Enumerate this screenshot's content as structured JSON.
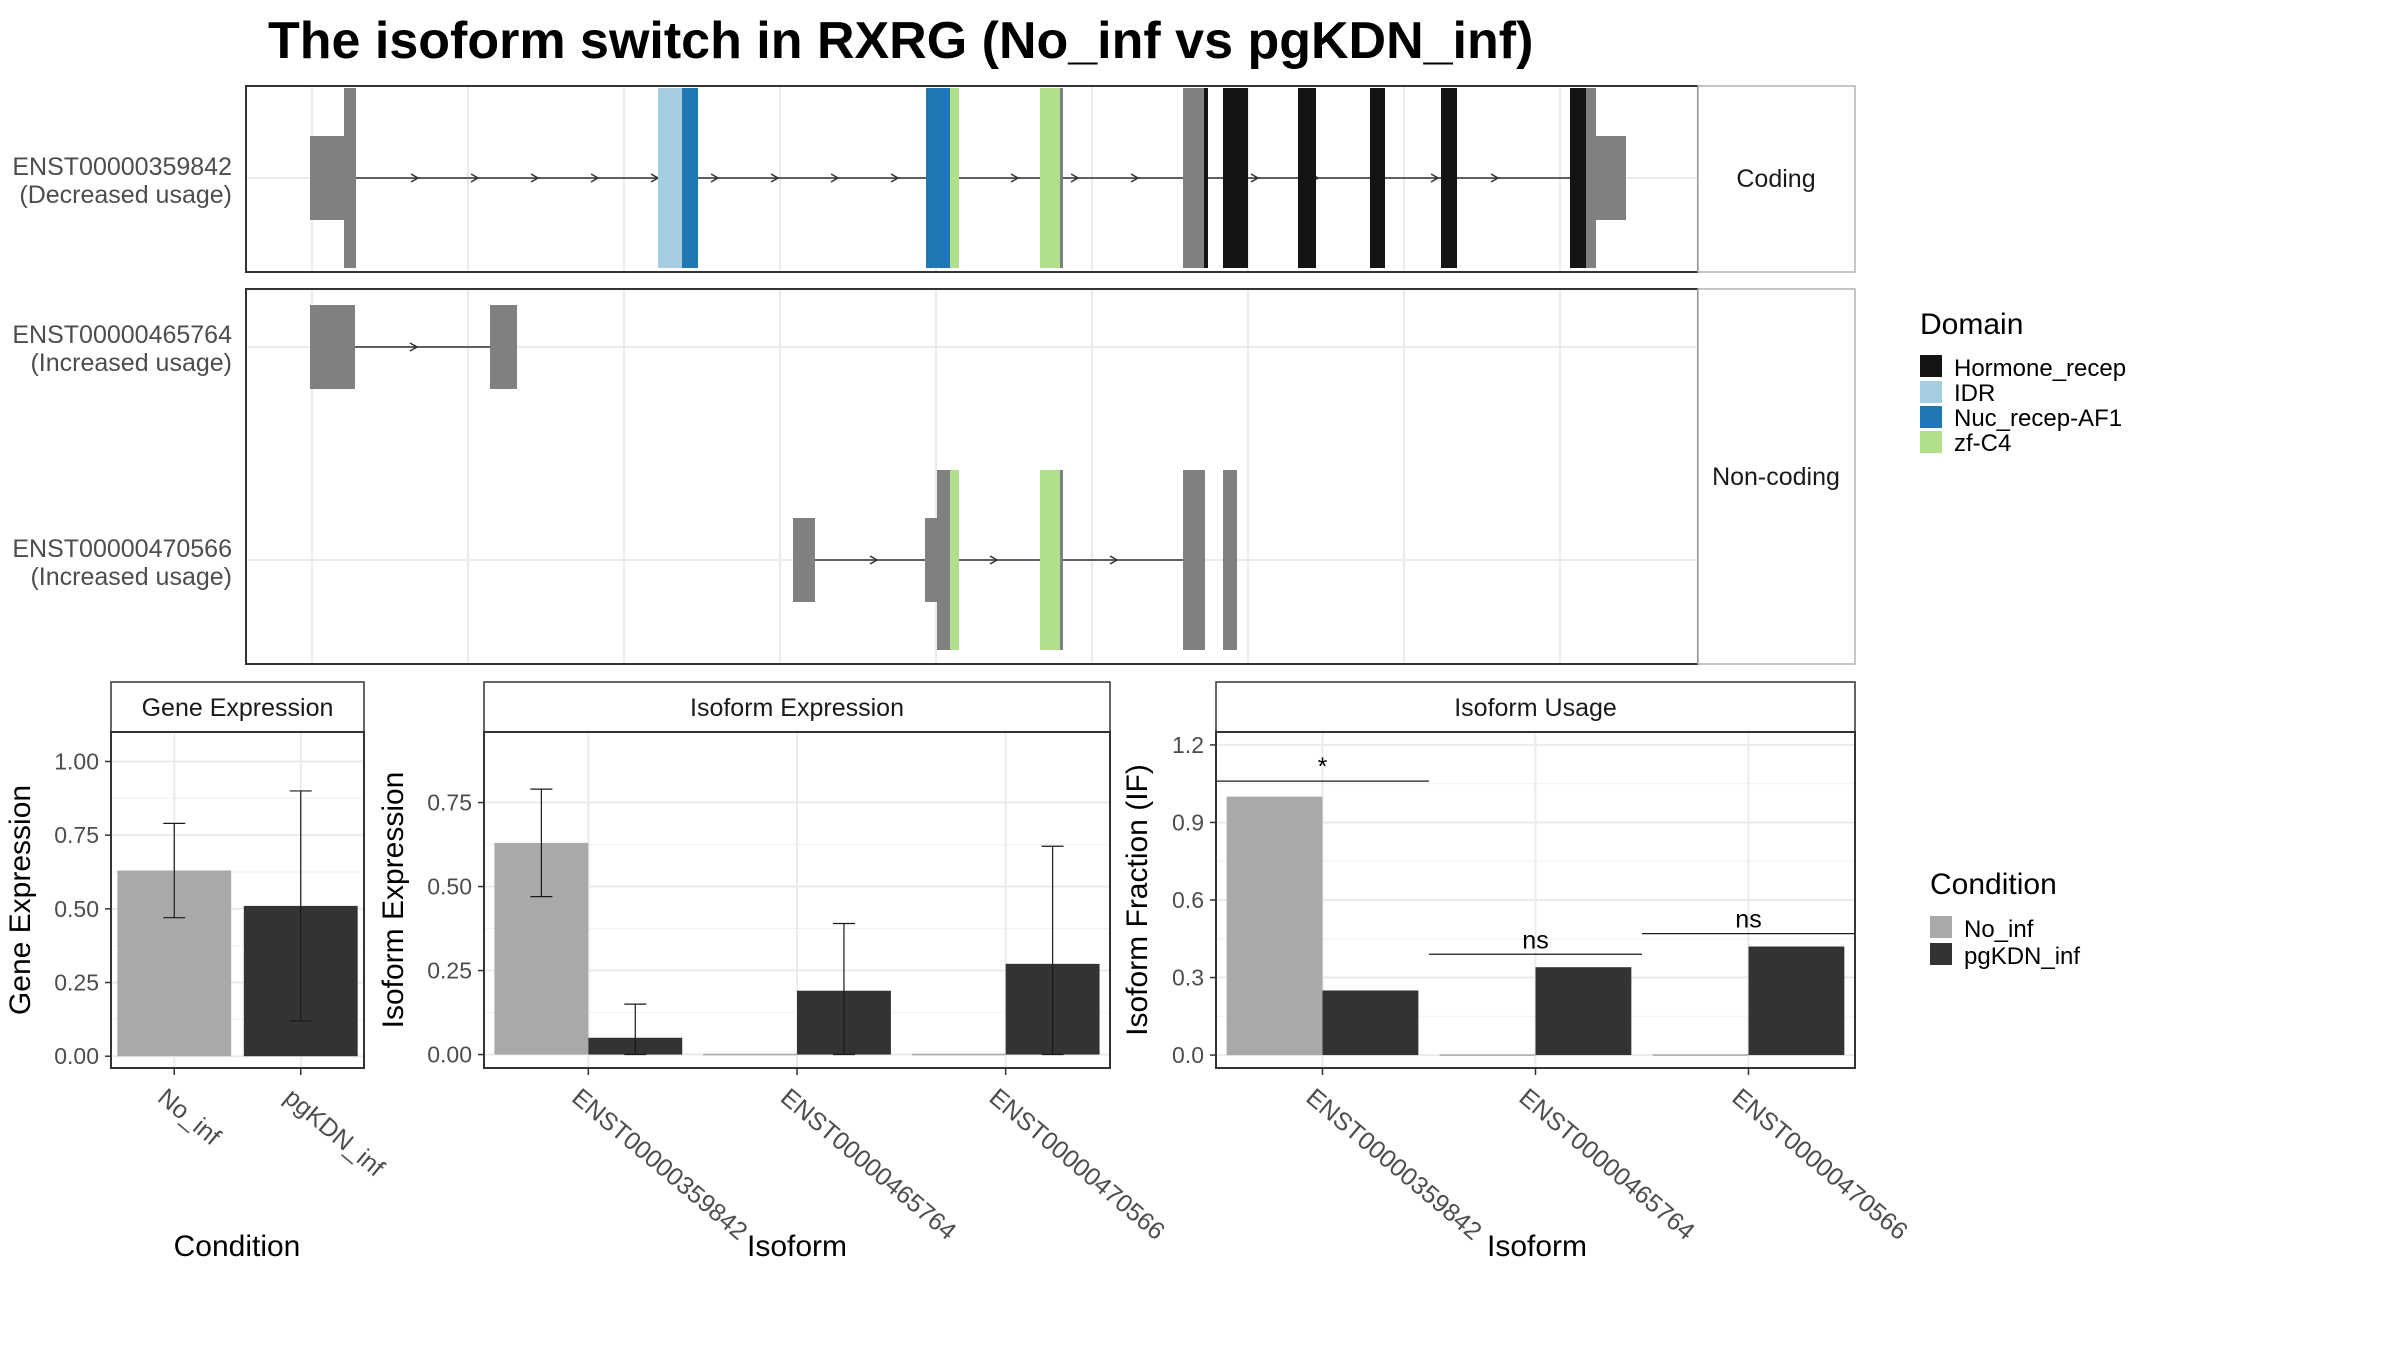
{
  "title": "The isoform switch in RXRG (No_inf vs pgKDN_inf)",
  "colors": {
    "hormone_recep": "#141414",
    "idr": "#a6cee3",
    "nuc_recep_af1": "#1f78b4",
    "zf_c4": "#b2df8a",
    "exon": "#808080",
    "no_inf": "#a9a9a9",
    "pgkdn_inf": "#333333",
    "grid": "#ebebeb",
    "panel_border": "#333333",
    "strip_border": "#b3b3b3"
  },
  "structure": {
    "facet_coding": "Coding",
    "facet_noncoding": "Non-coding",
    "transcripts": [
      {
        "id": "ENST00000359842",
        "usage": "(Decreased usage)",
        "type": "coding"
      },
      {
        "id": "ENST00000465764",
        "usage": "(Increased usage)",
        "type": "noncoding"
      },
      {
        "id": "ENST00000470566",
        "usage": "(Increased usage)",
        "type": "noncoding"
      }
    ],
    "domain_legend": {
      "title": "Domain",
      "items": [
        "Hormone_recep",
        "IDR",
        "Nuc_recep-AF1",
        "zf-C4"
      ]
    }
  },
  "chart_data": [
    {
      "type": "bar",
      "title": "Gene Expression",
      "xlabel": "Condition",
      "ylabel": "Gene Expression",
      "categories": [
        "No_inf",
        "pgKDN_inf"
      ],
      "values": [
        0.63,
        0.51
      ],
      "errors": [
        [
          0.47,
          0.79
        ],
        [
          0.12,
          0.9
        ]
      ],
      "ylim": [
        -0.04,
        1.1
      ],
      "yticks": [
        0.0,
        0.25,
        0.5,
        0.75,
        1.0
      ],
      "ytick_labels": [
        "0.00",
        "0.25",
        "0.50",
        "0.75",
        "1.00"
      ]
    },
    {
      "type": "bar",
      "title": "Isoform Expression",
      "xlabel": "Isoform",
      "ylabel": "Isoform Expression",
      "categories": [
        "ENST00000359842",
        "ENST00000465764",
        "ENST00000470566"
      ],
      "series": [
        {
          "name": "No_inf",
          "values": [
            0.63,
            0.0,
            0.0
          ],
          "errors": [
            [
              0.47,
              0.79
            ],
            null,
            null
          ]
        },
        {
          "name": "pgKDN_inf",
          "values": [
            0.05,
            0.19,
            0.27
          ],
          "errors": [
            [
              0.0,
              0.15
            ],
            [
              0.0,
              0.39
            ],
            [
              0.0,
              0.62
            ]
          ]
        }
      ],
      "ylim": [
        -0.04,
        0.96
      ],
      "yticks": [
        0.0,
        0.25,
        0.5,
        0.75
      ],
      "ytick_labels": [
        "0.00",
        "0.25",
        "0.50",
        "0.75"
      ]
    },
    {
      "type": "bar",
      "title": "Isoform Usage",
      "xlabel": "Isoform",
      "ylabel": "Isoform Fraction (IF)",
      "categories": [
        "ENST00000359842",
        "ENST00000465764",
        "ENST00000470566"
      ],
      "series": [
        {
          "name": "No_inf",
          "values": [
            1.0,
            0.0,
            0.0
          ]
        },
        {
          "name": "pgKDN_inf",
          "values": [
            0.25,
            0.34,
            0.42
          ]
        }
      ],
      "significance": [
        "*",
        "ns",
        "ns"
      ],
      "significance_y": [
        1.06,
        0.39,
        0.47
      ],
      "ylim": [
        -0.05,
        1.25
      ],
      "yticks": [
        0.0,
        0.3,
        0.6,
        0.9,
        1.2
      ],
      "ytick_labels": [
        "0.0",
        "0.3",
        "0.6",
        "0.9",
        "1.2"
      ],
      "legend": {
        "title": "Condition",
        "items": [
          "No_inf",
          "pgKDN_inf"
        ],
        "placement": "right"
      }
    }
  ]
}
